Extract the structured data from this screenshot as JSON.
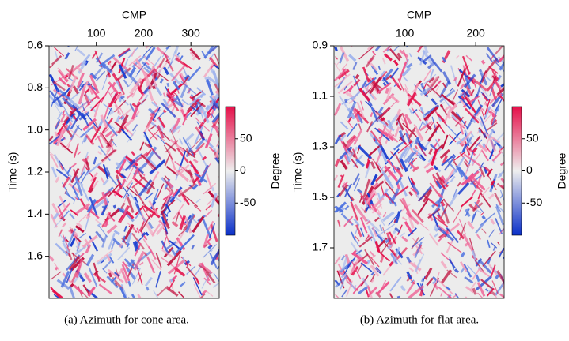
{
  "chart_data": [
    {
      "type": "image",
      "xlabel": "CMP",
      "ylabel": "Time (s)",
      "xlim": [
        0,
        360
      ],
      "xticks": [
        100,
        200,
        300
      ],
      "ylim": [
        0.6,
        1.8
      ],
      "yticks": [
        0.6,
        0.8,
        {
          "value": 1,
          "label": "1.0"
        },
        1.2,
        1.4,
        1.6
      ],
      "colorbar": {
        "label": "Degree",
        "lim": [
          -100,
          100
        ],
        "ticks": [
          50,
          0,
          -50
        ],
        "colors": [
          "#0a2fc8",
          "#eeeeee",
          "#e5104a"
        ]
      },
      "caption": "(a)  Azimuth for cone area."
    },
    {
      "type": "image",
      "xlabel": "CMP",
      "ylabel": "Time (s)",
      "xlim": [
        0,
        240
      ],
      "xticks": [
        100,
        200
      ],
      "ylim": [
        0.9,
        1.9
      ],
      "yticks": [
        0.9,
        1.1,
        1.3,
        1.5,
        1.7
      ],
      "colorbar": {
        "label": "Degree",
        "lim": [
          -100,
          100
        ],
        "ticks": [
          50,
          0,
          -50
        ],
        "colors": [
          "#0a2fc8",
          "#eeeeee",
          "#e5104a"
        ]
      },
      "caption": "(b)  Azimuth for flat area."
    }
  ]
}
